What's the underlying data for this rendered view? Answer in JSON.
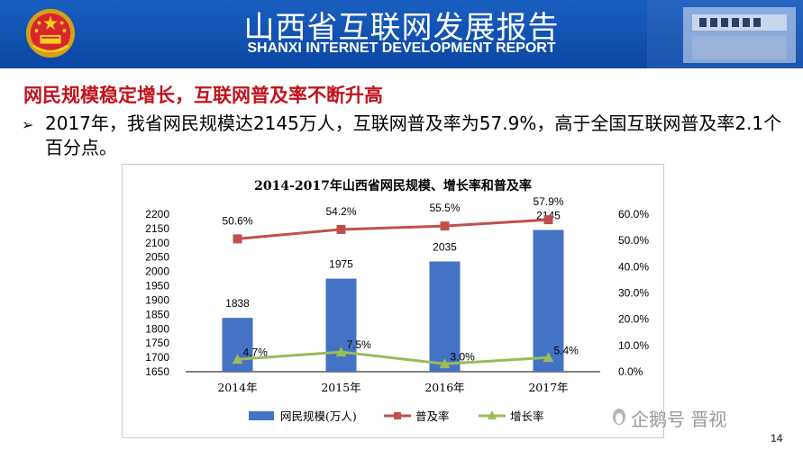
{
  "header": {
    "title": "山西省互联网发展报告",
    "subtitle": "SHANXI INTERNET DEVELOPMENT REPORT",
    "bg_color": "#0b46a3"
  },
  "slide": {
    "heading": "网民规模稳定增长，互联网普及率不断升高",
    "bullet_mark": "➢",
    "bullet_text": "2017年，我省网民规模达2145万人，互联网普及率为57.9%，高于全国互联网普及率2.1个百分点。",
    "page_number": "14",
    "watermark": "企鹅号 晋视"
  },
  "chart_data": {
    "type": "bar",
    "title": "2014-2017年山西省网民规模、增长率和普及率",
    "categories": [
      "2014年",
      "2015年",
      "2016年",
      "2017年"
    ],
    "series": [
      {
        "name": "网民规模(万人)",
        "type": "bar",
        "axis": "left",
        "values": [
          1838,
          1975,
          2035,
          2145
        ],
        "labels": [
          "1838",
          "1975",
          "2035",
          "2145"
        ],
        "color": "#4472c4"
      },
      {
        "name": "普及率",
        "type": "line",
        "axis": "right",
        "values": [
          50.6,
          54.2,
          55.5,
          57.9
        ],
        "labels": [
          "50.6%",
          "54.2%",
          "55.5%",
          "57.9%"
        ],
        "color": "#c0504d",
        "marker": "square"
      },
      {
        "name": "增长率",
        "type": "line",
        "axis": "right",
        "values": [
          4.7,
          7.5,
          3.0,
          5.4
        ],
        "labels": [
          "4.7%",
          "7.5%",
          "3.0%",
          "5.4%"
        ],
        "color": "#9bbb59",
        "marker": "triangle"
      }
    ],
    "y_left": {
      "min": 1650,
      "max": 2200,
      "ticks": [
        "1650",
        "1700",
        "1750",
        "1800",
        "1850",
        "1900",
        "1950",
        "2000",
        "2050",
        "2100",
        "2150",
        "2200"
      ]
    },
    "y_right": {
      "min": 0,
      "max": 60,
      "ticks": [
        "0.0%",
        "10.0%",
        "20.0%",
        "30.0%",
        "40.0%",
        "50.0%",
        "60.0%"
      ]
    },
    "legend_position": "bottom",
    "grid": false
  }
}
